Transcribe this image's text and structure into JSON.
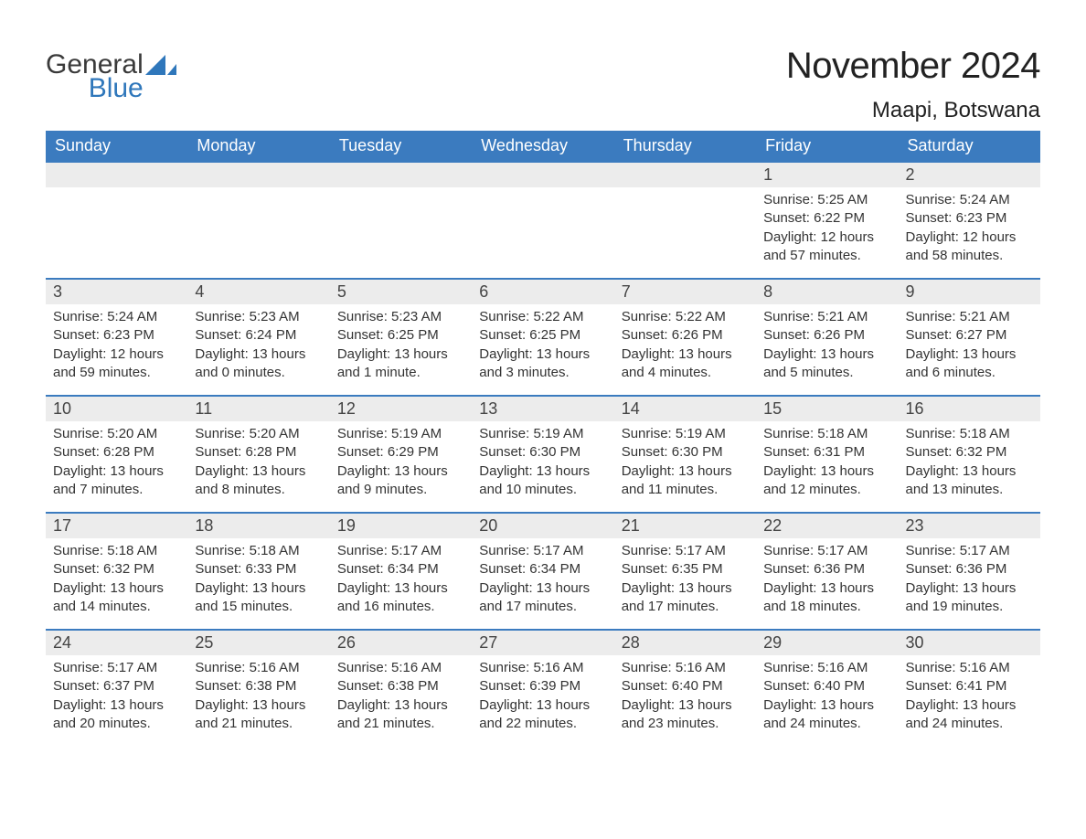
{
  "brand": {
    "word1": "General",
    "word2": "Blue",
    "word1_color": "#3a3a3a",
    "word2_color": "#2f77bb",
    "icon_color": "#2f77bb"
  },
  "header": {
    "title": "November 2024",
    "location": "Maapi, Botswana",
    "title_fontsize": 40,
    "location_fontsize": 24
  },
  "calendar": {
    "type": "table",
    "header_bg": "#3b7bbf",
    "header_text_color": "#ffffff",
    "row_border_color": "#3b7bbf",
    "daynum_bg": "#ececec",
    "text_color": "#333333",
    "columns": [
      "Sunday",
      "Monday",
      "Tuesday",
      "Wednesday",
      "Thursday",
      "Friday",
      "Saturday"
    ],
    "weeks": [
      [
        null,
        null,
        null,
        null,
        null,
        {
          "day": "1",
          "sunrise": "Sunrise: 5:25 AM",
          "sunset": "Sunset: 6:22 PM",
          "daylight": "Daylight: 12 hours and 57 minutes."
        },
        {
          "day": "2",
          "sunrise": "Sunrise: 5:24 AM",
          "sunset": "Sunset: 6:23 PM",
          "daylight": "Daylight: 12 hours and 58 minutes."
        }
      ],
      [
        {
          "day": "3",
          "sunrise": "Sunrise: 5:24 AM",
          "sunset": "Sunset: 6:23 PM",
          "daylight": "Daylight: 12 hours and 59 minutes."
        },
        {
          "day": "4",
          "sunrise": "Sunrise: 5:23 AM",
          "sunset": "Sunset: 6:24 PM",
          "daylight": "Daylight: 13 hours and 0 minutes."
        },
        {
          "day": "5",
          "sunrise": "Sunrise: 5:23 AM",
          "sunset": "Sunset: 6:25 PM",
          "daylight": "Daylight: 13 hours and 1 minute."
        },
        {
          "day": "6",
          "sunrise": "Sunrise: 5:22 AM",
          "sunset": "Sunset: 6:25 PM",
          "daylight": "Daylight: 13 hours and 3 minutes."
        },
        {
          "day": "7",
          "sunrise": "Sunrise: 5:22 AM",
          "sunset": "Sunset: 6:26 PM",
          "daylight": "Daylight: 13 hours and 4 minutes."
        },
        {
          "day": "8",
          "sunrise": "Sunrise: 5:21 AM",
          "sunset": "Sunset: 6:26 PM",
          "daylight": "Daylight: 13 hours and 5 minutes."
        },
        {
          "day": "9",
          "sunrise": "Sunrise: 5:21 AM",
          "sunset": "Sunset: 6:27 PM",
          "daylight": "Daylight: 13 hours and 6 minutes."
        }
      ],
      [
        {
          "day": "10",
          "sunrise": "Sunrise: 5:20 AM",
          "sunset": "Sunset: 6:28 PM",
          "daylight": "Daylight: 13 hours and 7 minutes."
        },
        {
          "day": "11",
          "sunrise": "Sunrise: 5:20 AM",
          "sunset": "Sunset: 6:28 PM",
          "daylight": "Daylight: 13 hours and 8 minutes."
        },
        {
          "day": "12",
          "sunrise": "Sunrise: 5:19 AM",
          "sunset": "Sunset: 6:29 PM",
          "daylight": "Daylight: 13 hours and 9 minutes."
        },
        {
          "day": "13",
          "sunrise": "Sunrise: 5:19 AM",
          "sunset": "Sunset: 6:30 PM",
          "daylight": "Daylight: 13 hours and 10 minutes."
        },
        {
          "day": "14",
          "sunrise": "Sunrise: 5:19 AM",
          "sunset": "Sunset: 6:30 PM",
          "daylight": "Daylight: 13 hours and 11 minutes."
        },
        {
          "day": "15",
          "sunrise": "Sunrise: 5:18 AM",
          "sunset": "Sunset: 6:31 PM",
          "daylight": "Daylight: 13 hours and 12 minutes."
        },
        {
          "day": "16",
          "sunrise": "Sunrise: 5:18 AM",
          "sunset": "Sunset: 6:32 PM",
          "daylight": "Daylight: 13 hours and 13 minutes."
        }
      ],
      [
        {
          "day": "17",
          "sunrise": "Sunrise: 5:18 AM",
          "sunset": "Sunset: 6:32 PM",
          "daylight": "Daylight: 13 hours and 14 minutes."
        },
        {
          "day": "18",
          "sunrise": "Sunrise: 5:18 AM",
          "sunset": "Sunset: 6:33 PM",
          "daylight": "Daylight: 13 hours and 15 minutes."
        },
        {
          "day": "19",
          "sunrise": "Sunrise: 5:17 AM",
          "sunset": "Sunset: 6:34 PM",
          "daylight": "Daylight: 13 hours and 16 minutes."
        },
        {
          "day": "20",
          "sunrise": "Sunrise: 5:17 AM",
          "sunset": "Sunset: 6:34 PM",
          "daylight": "Daylight: 13 hours and 17 minutes."
        },
        {
          "day": "21",
          "sunrise": "Sunrise: 5:17 AM",
          "sunset": "Sunset: 6:35 PM",
          "daylight": "Daylight: 13 hours and 17 minutes."
        },
        {
          "day": "22",
          "sunrise": "Sunrise: 5:17 AM",
          "sunset": "Sunset: 6:36 PM",
          "daylight": "Daylight: 13 hours and 18 minutes."
        },
        {
          "day": "23",
          "sunrise": "Sunrise: 5:17 AM",
          "sunset": "Sunset: 6:36 PM",
          "daylight": "Daylight: 13 hours and 19 minutes."
        }
      ],
      [
        {
          "day": "24",
          "sunrise": "Sunrise: 5:17 AM",
          "sunset": "Sunset: 6:37 PM",
          "daylight": "Daylight: 13 hours and 20 minutes."
        },
        {
          "day": "25",
          "sunrise": "Sunrise: 5:16 AM",
          "sunset": "Sunset: 6:38 PM",
          "daylight": "Daylight: 13 hours and 21 minutes."
        },
        {
          "day": "26",
          "sunrise": "Sunrise: 5:16 AM",
          "sunset": "Sunset: 6:38 PM",
          "daylight": "Daylight: 13 hours and 21 minutes."
        },
        {
          "day": "27",
          "sunrise": "Sunrise: 5:16 AM",
          "sunset": "Sunset: 6:39 PM",
          "daylight": "Daylight: 13 hours and 22 minutes."
        },
        {
          "day": "28",
          "sunrise": "Sunrise: 5:16 AM",
          "sunset": "Sunset: 6:40 PM",
          "daylight": "Daylight: 13 hours and 23 minutes."
        },
        {
          "day": "29",
          "sunrise": "Sunrise: 5:16 AM",
          "sunset": "Sunset: 6:40 PM",
          "daylight": "Daylight: 13 hours and 24 minutes."
        },
        {
          "day": "30",
          "sunrise": "Sunrise: 5:16 AM",
          "sunset": "Sunset: 6:41 PM",
          "daylight": "Daylight: 13 hours and 24 minutes."
        }
      ]
    ]
  }
}
